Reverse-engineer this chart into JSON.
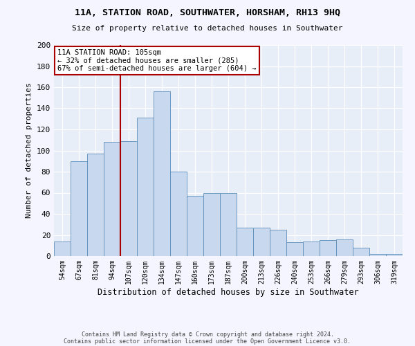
{
  "title": "11A, STATION ROAD, SOUTHWATER, HORSHAM, RH13 9HQ",
  "subtitle": "Size of property relative to detached houses in Southwater",
  "xlabel": "Distribution of detached houses by size in Southwater",
  "ylabel": "Number of detached properties",
  "bar_labels": [
    "54sqm",
    "67sqm",
    "81sqm",
    "94sqm",
    "107sqm",
    "120sqm",
    "134sqm",
    "147sqm",
    "160sqm",
    "173sqm",
    "187sqm",
    "200sqm",
    "213sqm",
    "226sqm",
    "240sqm",
    "253sqm",
    "266sqm",
    "279sqm",
    "293sqm",
    "306sqm",
    "319sqm"
  ],
  "bar_values": [
    14,
    90,
    97,
    108,
    109,
    131,
    156,
    80,
    57,
    60,
    60,
    27,
    27,
    25,
    13,
    14,
    15,
    16,
    8,
    2,
    2
  ],
  "bar_color": "#c8d8ee",
  "bar_edge_color": "#5b8db8",
  "vline_color": "#aa0000",
  "annotation_text": "11A STATION ROAD: 105sqm\n← 32% of detached houses are smaller (285)\n67% of semi-detached houses are larger (604) →",
  "annotation_box_color": "#ffffff",
  "annotation_box_edge": "#aa0000",
  "bg_color": "#e8eef8",
  "grid_color": "#ffffff",
  "fig_bg_color": "#f5f5ff",
  "footer1": "Contains HM Land Registry data © Crown copyright and database right 2024.",
  "footer2": "Contains public sector information licensed under the Open Government Licence v3.0.",
  "ylim": [
    0,
    200
  ],
  "yticks": [
    0,
    20,
    40,
    60,
    80,
    100,
    120,
    140,
    160,
    180,
    200
  ]
}
